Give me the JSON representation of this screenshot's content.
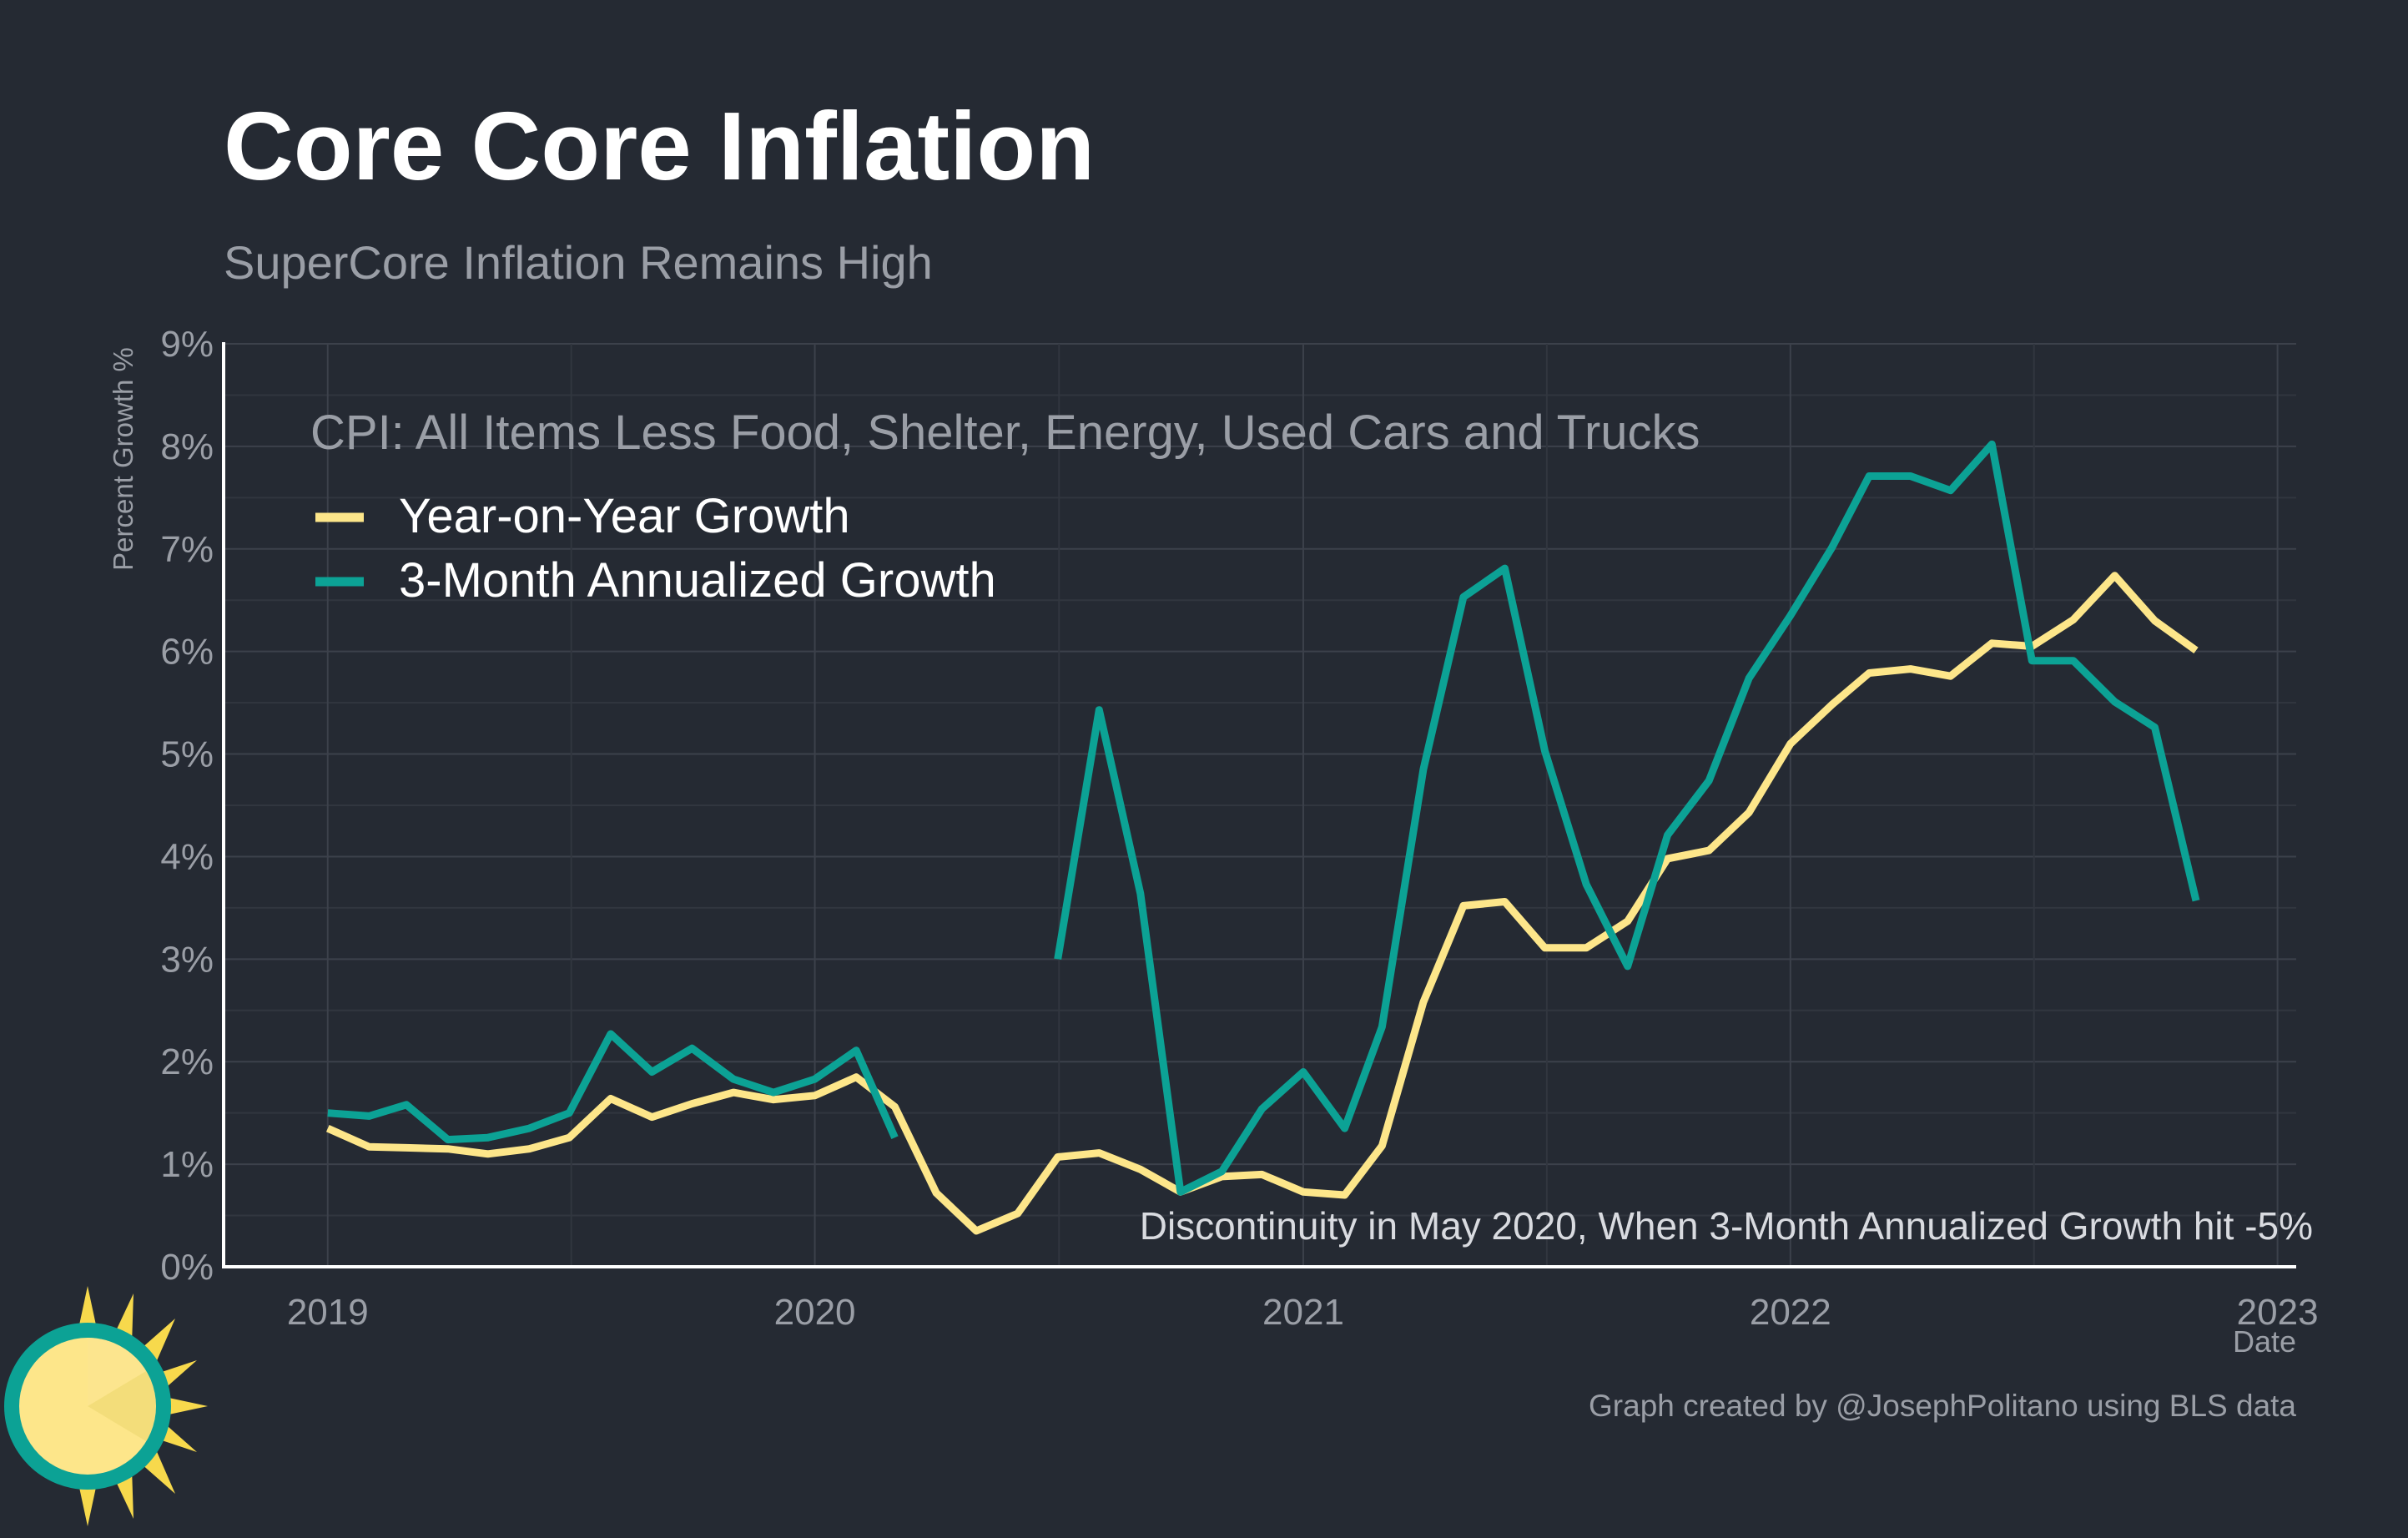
{
  "title": "Core Core Inflation",
  "subtitle": "SuperCore Inflation Remains High",
  "caption": "Graph created by @JosephPolitano using BLS data",
  "colors": {
    "background": "#252a33",
    "grid": "#3c414b",
    "axis": "#ffffff",
    "text_muted": "#9a9ea6",
    "yoy": "#fde68a",
    "three_month": "#0ca295"
  },
  "chart_data": {
    "type": "line",
    "legend_title": "CPI: All Items Less Food, Shelter, Energy, Used Cars and Trucks",
    "legend_position": "top-left",
    "annotation": "Discontinuity in May 2020, When 3-Month Annualized Growth hit -5%",
    "xlabel": "Date",
    "ylabel": "Percent Growth %",
    "xlim": [
      "2018-10-15",
      "2023-01-15"
    ],
    "ylim": [
      0,
      9
    ],
    "x_ticks": [
      "2019-01-01",
      "2020-01-01",
      "2021-01-01",
      "2022-01-01",
      "2023-01-01"
    ],
    "x_tick_labels": [
      "2019",
      "2020",
      "2021",
      "2022",
      "2023"
    ],
    "y_ticks": [
      0,
      1,
      2,
      3,
      4,
      5,
      6,
      7,
      8,
      9
    ],
    "y_tick_labels": [
      "0%",
      "1%",
      "2%",
      "3%",
      "4%",
      "5%",
      "6%",
      "7%",
      "8%",
      "9%"
    ],
    "grid": true,
    "series": [
      {
        "name": "Year-on-Year Growth",
        "color": "#fde68a",
        "points": [
          [
            "2019-01-01",
            1.35
          ],
          [
            "2019-02-01",
            1.17
          ],
          [
            "2019-03-01",
            1.16
          ],
          [
            "2019-04-01",
            1.15
          ],
          [
            "2019-05-01",
            1.1
          ],
          [
            "2019-06-01",
            1.15
          ],
          [
            "2019-07-01",
            1.26
          ],
          [
            "2019-08-01",
            1.64
          ],
          [
            "2019-09-01",
            1.46
          ],
          [
            "2019-10-01",
            1.59
          ],
          [
            "2019-11-01",
            1.7
          ],
          [
            "2019-12-01",
            1.63
          ],
          [
            "2020-01-01",
            1.67
          ],
          [
            "2020-02-01",
            1.85
          ],
          [
            "2020-03-01",
            1.56
          ],
          [
            "2020-04-01",
            0.72
          ],
          [
            "2020-05-01",
            0.35
          ],
          [
            "2020-06-01",
            0.52
          ],
          [
            "2020-07-01",
            1.07
          ],
          [
            "2020-08-01",
            1.11
          ],
          [
            "2020-09-01",
            0.95
          ],
          [
            "2020-10-01",
            0.73
          ],
          [
            "2020-11-01",
            0.88
          ],
          [
            "2020-12-01",
            0.9
          ],
          [
            "2021-01-01",
            0.73
          ],
          [
            "2021-02-01",
            0.7
          ],
          [
            "2021-03-01",
            1.18
          ],
          [
            "2021-04-01",
            2.58
          ],
          [
            "2021-05-01",
            3.52
          ],
          [
            "2021-06-01",
            3.56
          ],
          [
            "2021-07-01",
            3.11
          ],
          [
            "2021-08-01",
            3.11
          ],
          [
            "2021-09-01",
            3.37
          ],
          [
            "2021-10-01",
            3.98
          ],
          [
            "2021-11-01",
            4.06
          ],
          [
            "2021-12-01",
            4.43
          ],
          [
            "2022-01-01",
            5.1
          ],
          [
            "2022-02-01",
            5.48
          ],
          [
            "2022-03-01",
            5.79
          ],
          [
            "2022-04-01",
            5.83
          ],
          [
            "2022-05-01",
            5.76
          ],
          [
            "2022-06-01",
            6.08
          ],
          [
            "2022-07-01",
            6.05
          ],
          [
            "2022-08-01",
            6.31
          ],
          [
            "2022-09-01",
            6.74
          ],
          [
            "2022-10-01",
            6.3
          ],
          [
            "2022-11-01",
            6.01
          ]
        ]
      },
      {
        "name": "3-Month Annualized Growth",
        "color": "#0ca295",
        "segments": [
          [
            [
              "2019-01-01",
              1.5
            ],
            [
              "2019-02-01",
              1.47
            ],
            [
              "2019-03-01",
              1.58
            ],
            [
              "2019-04-01",
              1.24
            ],
            [
              "2019-05-01",
              1.26
            ],
            [
              "2019-06-01",
              1.35
            ],
            [
              "2019-07-01",
              1.5
            ],
            [
              "2019-08-01",
              2.27
            ],
            [
              "2019-09-01",
              1.9
            ],
            [
              "2019-10-01",
              2.13
            ],
            [
              "2019-11-01",
              1.83
            ],
            [
              "2019-12-01",
              1.7
            ],
            [
              "2020-01-01",
              1.83
            ],
            [
              "2020-02-01",
              2.11
            ],
            [
              "2020-03-01",
              1.26
            ]
          ],
          [
            [
              "2020-07-01",
              3.0
            ],
            [
              "2020-08-01",
              5.43
            ],
            [
              "2020-09-01",
              3.64
            ],
            [
              "2020-10-01",
              0.73
            ],
            [
              "2020-11-01",
              0.93
            ],
            [
              "2020-12-01",
              1.54
            ],
            [
              "2021-01-01",
              1.9
            ],
            [
              "2021-02-01",
              1.35
            ],
            [
              "2021-03-01",
              2.34
            ],
            [
              "2021-04-01",
              4.85
            ],
            [
              "2021-05-01",
              6.53
            ],
            [
              "2021-06-01",
              6.81
            ],
            [
              "2021-07-01",
              5.03
            ],
            [
              "2021-08-01",
              3.73
            ],
            [
              "2021-09-01",
              2.93
            ],
            [
              "2021-10-01",
              4.21
            ],
            [
              "2021-11-01",
              4.74
            ],
            [
              "2021-12-01",
              5.74
            ],
            [
              "2022-01-01",
              6.35
            ],
            [
              "2022-02-01",
              7.01
            ],
            [
              "2022-03-01",
              7.71
            ],
            [
              "2022-04-01",
              7.71
            ],
            [
              "2022-05-01",
              7.57
            ],
            [
              "2022-06-01",
              8.02
            ],
            [
              "2022-07-01",
              5.91
            ],
            [
              "2022-08-01",
              5.91
            ],
            [
              "2022-09-01",
              5.51
            ],
            [
              "2022-10-01",
              5.26
            ],
            [
              "2022-11-01",
              3.57
            ]
          ]
        ]
      }
    ]
  }
}
